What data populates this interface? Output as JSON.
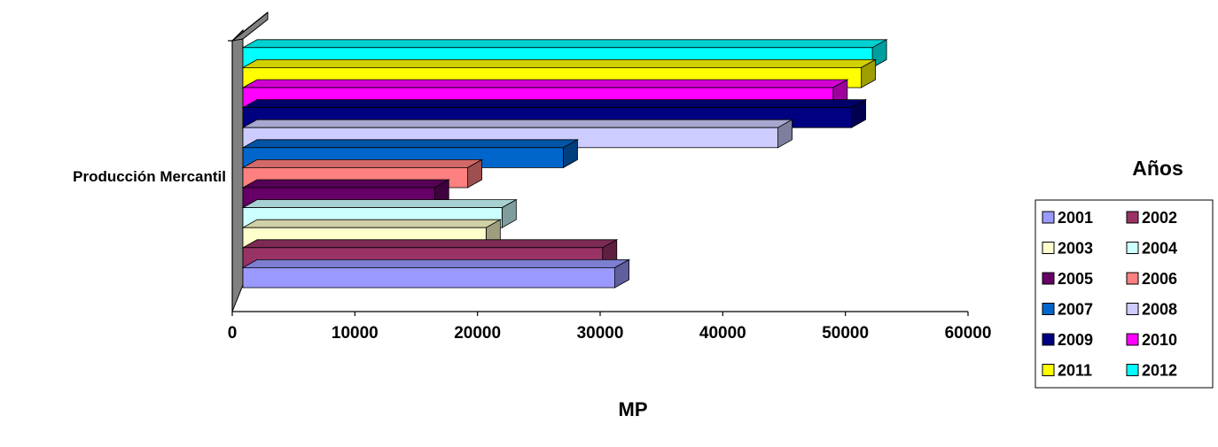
{
  "chart_data": {
    "type": "bar",
    "orientation": "horizontal",
    "three_d": true,
    "category_label": "Producción Mercantil",
    "xlabel": "MP",
    "xlim": [
      0,
      60000
    ],
    "x_ticks": [
      "0",
      "10000",
      "20000",
      "30000",
      "40000",
      "50000",
      "60000"
    ],
    "grid": false,
    "legend": {
      "title": "Años",
      "position": "right",
      "columns": 2
    },
    "series": [
      {
        "name": "2001",
        "value": 31200,
        "color": "#9999ff"
      },
      {
        "name": "2002",
        "value": 30200,
        "color": "#993366"
      },
      {
        "name": "2003",
        "value": 20700,
        "color": "#ffffcc"
      },
      {
        "name": "2004",
        "value": 22000,
        "color": "#ccffff"
      },
      {
        "name": "2005",
        "value": 16500,
        "color": "#660066"
      },
      {
        "name": "2006",
        "value": 19200,
        "color": "#ff8080"
      },
      {
        "name": "2007",
        "value": 27000,
        "color": "#0066cc"
      },
      {
        "name": "2008",
        "value": 44500,
        "color": "#ccccff"
      },
      {
        "name": "2009",
        "value": 50500,
        "color": "#000080"
      },
      {
        "name": "2010",
        "value": 49000,
        "color": "#ff00ff"
      },
      {
        "name": "2011",
        "value": 51300,
        "color": "#ffff00"
      },
      {
        "name": "2012",
        "value": 52200,
        "color": "#00ffff"
      }
    ]
  }
}
